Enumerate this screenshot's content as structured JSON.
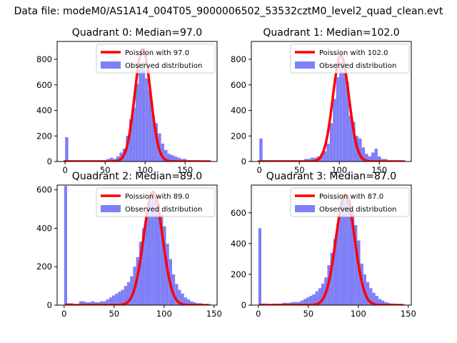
{
  "colors": {
    "bars": "#7f7ff7",
    "poisson": "#ff0000",
    "legend_border": "#cccccc"
  },
  "chart_data": {
    "suptitle": "Data file: modeM0/AS1A14_004T05_9000006502_53532cztM0_level2_quad_clean.evt",
    "subplots": [
      {
        "type": "bar",
        "title": "Quadrant 0: Median=97.0",
        "xlim": [
          -10,
          190
        ],
        "ylim": [
          0,
          940
        ],
        "xticks": [
          0,
          50,
          100,
          150
        ],
        "yticks": [
          0,
          200,
          400,
          600,
          800
        ],
        "legend": {
          "line": "Poission with 97.0",
          "bars": "Observed distribution",
          "loc": "top-right"
        },
        "poisson_mean": 97.0,
        "poisson_peak": 880,
        "bins": [
          {
            "x": 0,
            "y": 190
          },
          {
            "x": 4,
            "y": 10
          },
          {
            "x": 8,
            "y": 10
          },
          {
            "x": 12,
            "y": 10
          },
          {
            "x": 16,
            "y": 10
          },
          {
            "x": 20,
            "y": 10
          },
          {
            "x": 24,
            "y": 10
          },
          {
            "x": 28,
            "y": 10
          },
          {
            "x": 32,
            "y": 10
          },
          {
            "x": 36,
            "y": 10
          },
          {
            "x": 40,
            "y": 10
          },
          {
            "x": 44,
            "y": 10
          },
          {
            "x": 48,
            "y": 10
          },
          {
            "x": 52,
            "y": 20
          },
          {
            "x": 56,
            "y": 30
          },
          {
            "x": 60,
            "y": 20
          },
          {
            "x": 64,
            "y": 40
          },
          {
            "x": 68,
            "y": 70
          },
          {
            "x": 72,
            "y": 100
          },
          {
            "x": 76,
            "y": 200
          },
          {
            "x": 80,
            "y": 330
          },
          {
            "x": 84,
            "y": 420
          },
          {
            "x": 88,
            "y": 610
          },
          {
            "x": 92,
            "y": 730
          },
          {
            "x": 96,
            "y": 780
          },
          {
            "x": 100,
            "y": 650
          },
          {
            "x": 104,
            "y": 560
          },
          {
            "x": 108,
            "y": 370
          },
          {
            "x": 112,
            "y": 300
          },
          {
            "x": 116,
            "y": 220
          },
          {
            "x": 120,
            "y": 140
          },
          {
            "x": 124,
            "y": 90
          },
          {
            "x": 128,
            "y": 60
          },
          {
            "x": 132,
            "y": 50
          },
          {
            "x": 136,
            "y": 40
          },
          {
            "x": 140,
            "y": 30
          },
          {
            "x": 144,
            "y": 20
          },
          {
            "x": 148,
            "y": 20
          },
          {
            "x": 152,
            "y": 10
          },
          {
            "x": 156,
            "y": 10
          },
          {
            "x": 160,
            "y": 10
          },
          {
            "x": 164,
            "y": 10
          },
          {
            "x": 168,
            "y": 5
          },
          {
            "x": 172,
            "y": 5
          },
          {
            "x": 176,
            "y": 5
          },
          {
            "x": 180,
            "y": 5
          }
        ]
      },
      {
        "type": "bar",
        "title": "Quadrant 1: Median=102.0",
        "xlim": [
          -10,
          190
        ],
        "ylim": [
          0,
          940
        ],
        "xticks": [
          0,
          50,
          100,
          150
        ],
        "yticks": [
          0,
          200,
          400,
          600,
          800
        ],
        "legend": {
          "line": "Poission with 102.0",
          "bars": "Observed distribution",
          "loc": "top-right"
        },
        "poisson_mean": 102.0,
        "poisson_peak": 830,
        "bins": [
          {
            "x": 0,
            "y": 180
          },
          {
            "x": 4,
            "y": 10
          },
          {
            "x": 8,
            "y": 10
          },
          {
            "x": 12,
            "y": 10
          },
          {
            "x": 16,
            "y": 10
          },
          {
            "x": 20,
            "y": 10
          },
          {
            "x": 24,
            "y": 10
          },
          {
            "x": 28,
            "y": 10
          },
          {
            "x": 32,
            "y": 10
          },
          {
            "x": 36,
            "y": 10
          },
          {
            "x": 40,
            "y": 10
          },
          {
            "x": 44,
            "y": 10
          },
          {
            "x": 48,
            "y": 10
          },
          {
            "x": 52,
            "y": 10
          },
          {
            "x": 56,
            "y": 20
          },
          {
            "x": 60,
            "y": 20
          },
          {
            "x": 64,
            "y": 30
          },
          {
            "x": 68,
            "y": 30
          },
          {
            "x": 72,
            "y": 40
          },
          {
            "x": 76,
            "y": 60
          },
          {
            "x": 80,
            "y": 80
          },
          {
            "x": 84,
            "y": 140
          },
          {
            "x": 88,
            "y": 300
          },
          {
            "x": 92,
            "y": 490
          },
          {
            "x": 96,
            "y": 660
          },
          {
            "x": 100,
            "y": 780
          },
          {
            "x": 104,
            "y": 700
          },
          {
            "x": 108,
            "y": 620
          },
          {
            "x": 112,
            "y": 360
          },
          {
            "x": 116,
            "y": 310
          },
          {
            "x": 120,
            "y": 200
          },
          {
            "x": 124,
            "y": 180
          },
          {
            "x": 128,
            "y": 110
          },
          {
            "x": 132,
            "y": 60
          },
          {
            "x": 136,
            "y": 40
          },
          {
            "x": 140,
            "y": 70
          },
          {
            "x": 144,
            "y": 100
          },
          {
            "x": 148,
            "y": 40
          },
          {
            "x": 152,
            "y": 20
          },
          {
            "x": 156,
            "y": 20
          },
          {
            "x": 160,
            "y": 10
          },
          {
            "x": 164,
            "y": 10
          },
          {
            "x": 168,
            "y": 10
          },
          {
            "x": 172,
            "y": 5
          },
          {
            "x": 176,
            "y": 5
          },
          {
            "x": 180,
            "y": 5
          }
        ]
      },
      {
        "type": "bar",
        "title": "Quadrant 2: Median=89.0",
        "xlim": [
          -7,
          153
        ],
        "ylim": [
          0,
          625
        ],
        "xticks": [
          0,
          50,
          100,
          150
        ],
        "yticks": [
          0,
          200,
          400,
          600
        ],
        "legend": {
          "line": "Poission with 89.0",
          "bars": "Observed distribution",
          "loc": "top-right"
        },
        "poisson_mean": 89.0,
        "poisson_peak": 590,
        "bins": [
          {
            "x": 0,
            "y": 620
          },
          {
            "x": 3,
            "y": 10
          },
          {
            "x": 6,
            "y": 10
          },
          {
            "x": 9,
            "y": 5
          },
          {
            "x": 12,
            "y": 5
          },
          {
            "x": 15,
            "y": 20
          },
          {
            "x": 18,
            "y": 20
          },
          {
            "x": 21,
            "y": 15
          },
          {
            "x": 24,
            "y": 15
          },
          {
            "x": 27,
            "y": 20
          },
          {
            "x": 30,
            "y": 15
          },
          {
            "x": 33,
            "y": 15
          },
          {
            "x": 36,
            "y": 20
          },
          {
            "x": 39,
            "y": 20
          },
          {
            "x": 42,
            "y": 30
          },
          {
            "x": 45,
            "y": 40
          },
          {
            "x": 48,
            "y": 50
          },
          {
            "x": 51,
            "y": 60
          },
          {
            "x": 54,
            "y": 70
          },
          {
            "x": 57,
            "y": 80
          },
          {
            "x": 60,
            "y": 100
          },
          {
            "x": 63,
            "y": 120
          },
          {
            "x": 66,
            "y": 150
          },
          {
            "x": 69,
            "y": 200
          },
          {
            "x": 72,
            "y": 250
          },
          {
            "x": 75,
            "y": 330
          },
          {
            "x": 78,
            "y": 400
          },
          {
            "x": 81,
            "y": 470
          },
          {
            "x": 84,
            "y": 530
          },
          {
            "x": 87,
            "y": 580
          },
          {
            "x": 90,
            "y": 570
          },
          {
            "x": 93,
            "y": 530
          },
          {
            "x": 96,
            "y": 470
          },
          {
            "x": 99,
            "y": 410
          },
          {
            "x": 102,
            "y": 320
          },
          {
            "x": 105,
            "y": 240
          },
          {
            "x": 108,
            "y": 160
          },
          {
            "x": 111,
            "y": 110
          },
          {
            "x": 114,
            "y": 80
          },
          {
            "x": 117,
            "y": 60
          },
          {
            "x": 120,
            "y": 40
          },
          {
            "x": 123,
            "y": 30
          },
          {
            "x": 126,
            "y": 20
          },
          {
            "x": 129,
            "y": 15
          },
          {
            "x": 132,
            "y": 10
          },
          {
            "x": 135,
            "y": 10
          },
          {
            "x": 138,
            "y": 5
          },
          {
            "x": 141,
            "y": 5
          },
          {
            "x": 144,
            "y": 5
          }
        ]
      },
      {
        "type": "bar",
        "title": "Quadrant 3: Median=87.0",
        "xlim": [
          -7,
          153
        ],
        "ylim": [
          0,
          780
        ],
        "xticks": [
          0,
          50,
          100,
          150
        ],
        "yticks": [
          0,
          200,
          400,
          600
        ],
        "legend": {
          "line": "Poission with 87.0",
          "bars": "Observed distribution",
          "loc": "top-right"
        },
        "poisson_mean": 87.0,
        "poisson_peak": 720,
        "bins": [
          {
            "x": 0,
            "y": 500
          },
          {
            "x": 3,
            "y": 10
          },
          {
            "x": 6,
            "y": 10
          },
          {
            "x": 9,
            "y": 5
          },
          {
            "x": 12,
            "y": 5
          },
          {
            "x": 15,
            "y": 10
          },
          {
            "x": 18,
            "y": 10
          },
          {
            "x": 21,
            "y": 10
          },
          {
            "x": 24,
            "y": 15
          },
          {
            "x": 27,
            "y": 15
          },
          {
            "x": 30,
            "y": 15
          },
          {
            "x": 33,
            "y": 20
          },
          {
            "x": 36,
            "y": 20
          },
          {
            "x": 39,
            "y": 20
          },
          {
            "x": 42,
            "y": 30
          },
          {
            "x": 45,
            "y": 40
          },
          {
            "x": 48,
            "y": 50
          },
          {
            "x": 51,
            "y": 60
          },
          {
            "x": 54,
            "y": 70
          },
          {
            "x": 57,
            "y": 90
          },
          {
            "x": 60,
            "y": 110
          },
          {
            "x": 63,
            "y": 140
          },
          {
            "x": 66,
            "y": 180
          },
          {
            "x": 69,
            "y": 260
          },
          {
            "x": 72,
            "y": 340
          },
          {
            "x": 75,
            "y": 430
          },
          {
            "x": 78,
            "y": 520
          },
          {
            "x": 81,
            "y": 610
          },
          {
            "x": 84,
            "y": 680
          },
          {
            "x": 87,
            "y": 720
          },
          {
            "x": 90,
            "y": 680
          },
          {
            "x": 93,
            "y": 620
          },
          {
            "x": 96,
            "y": 520
          },
          {
            "x": 99,
            "y": 420
          },
          {
            "x": 102,
            "y": 270
          },
          {
            "x": 105,
            "y": 200
          },
          {
            "x": 108,
            "y": 150
          },
          {
            "x": 111,
            "y": 110
          },
          {
            "x": 114,
            "y": 80
          },
          {
            "x": 117,
            "y": 60
          },
          {
            "x": 120,
            "y": 40
          },
          {
            "x": 123,
            "y": 30
          },
          {
            "x": 126,
            "y": 20
          },
          {
            "x": 129,
            "y": 15
          },
          {
            "x": 132,
            "y": 10
          },
          {
            "x": 135,
            "y": 10
          },
          {
            "x": 138,
            "y": 5
          },
          {
            "x": 141,
            "y": 5
          },
          {
            "x": 144,
            "y": 5
          }
        ]
      }
    ]
  }
}
